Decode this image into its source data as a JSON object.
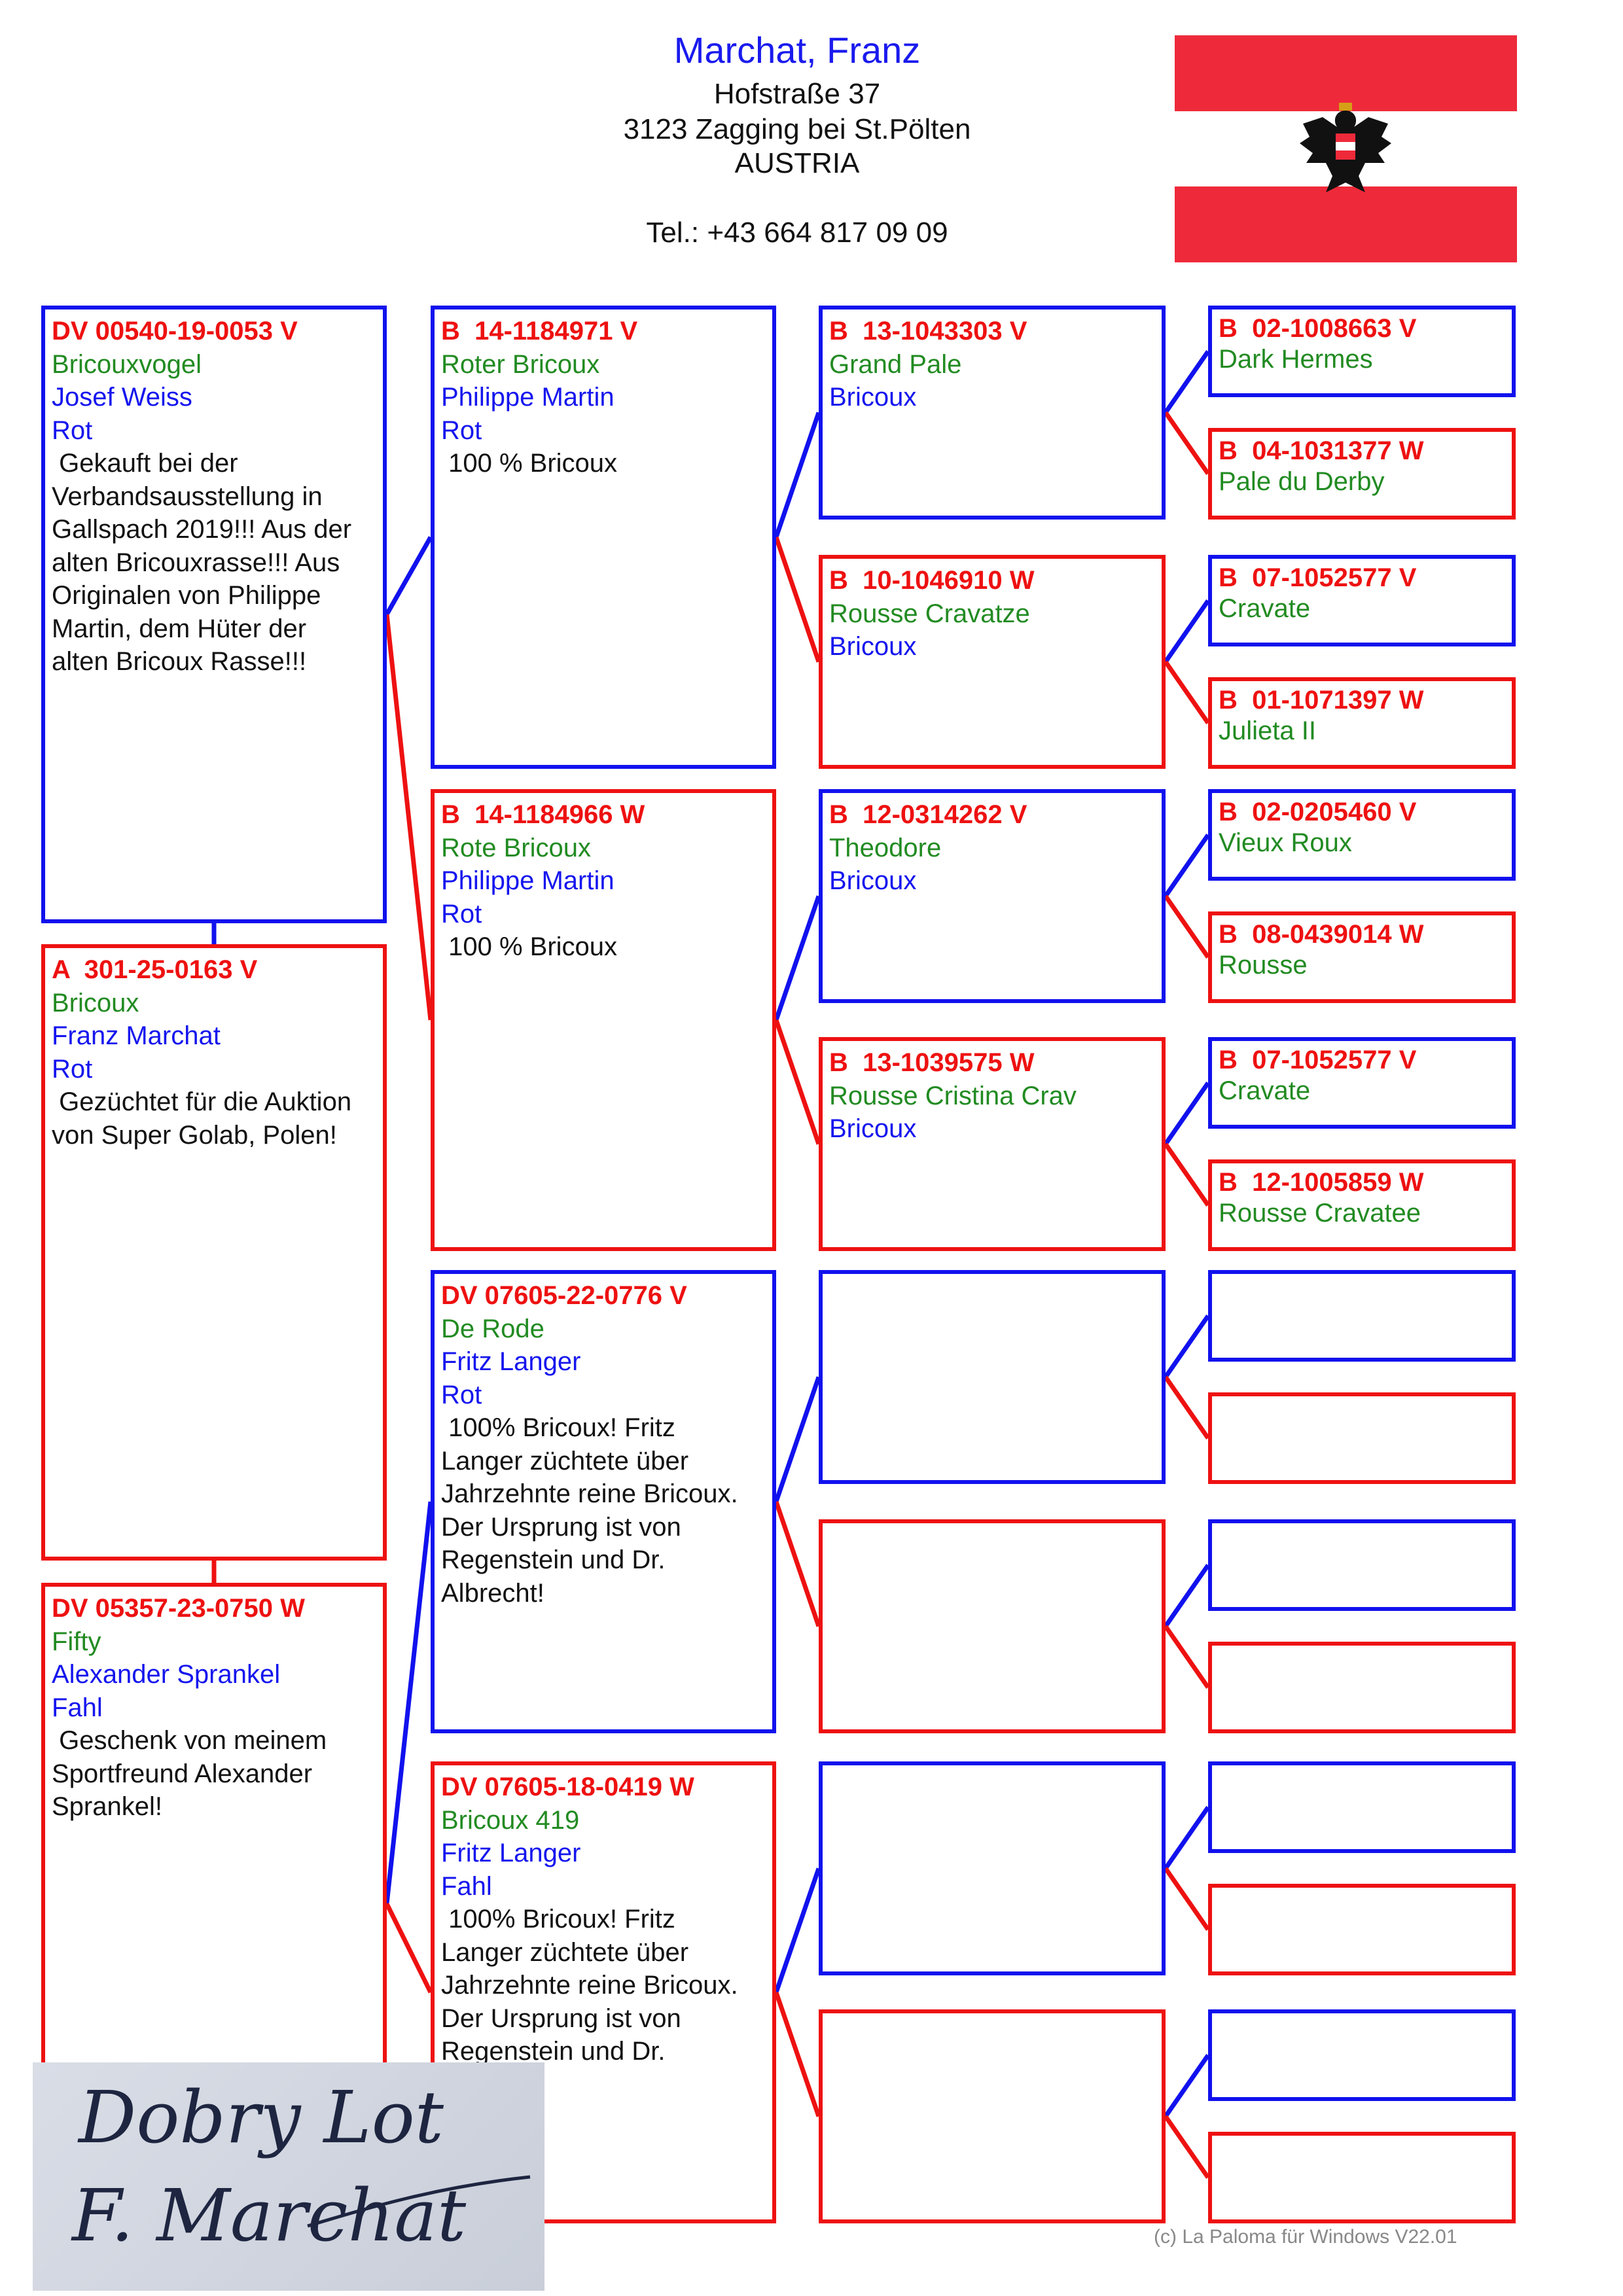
{
  "header": {
    "title": "Marchat, Franz",
    "street": "Hofstraße 37",
    "city": "3123 Zagging bei St.Pölten",
    "country": "AUSTRIA",
    "phone": "Tel.: +43 664 817 09 09"
  },
  "flag": {
    "icon": "austria-flag-eagle-icon",
    "colors": {
      "red": "#ee2a3a",
      "white": "#ffffff"
    }
  },
  "colors": {
    "male": "#1111ee",
    "female": "#ee1111",
    "ring": "#ee1111",
    "name": "#228b22",
    "breeder": "#1515ee"
  },
  "pedigree": {
    "gen1": [
      {
        "ring": "DV 00540-19-0053 V",
        "name": "Bricouxvogel",
        "breeder": "Josef Weiss",
        "color": "Rot",
        "note": " Gekauft bei der Verbandsausstellung in Gallspach 2019!!! Aus der alten Bricouxrasse!!! Aus Originalen von Philippe Martin, dem Hüter der alten Bricoux Rasse!!!"
      },
      {
        "ring": "A  301-25-0163 V",
        "name": "Bricoux",
        "breeder": "Franz Marchat",
        "color": "Rot",
        "note": " Gezüchtet für die Auktion von Super Golab, Polen!"
      },
      {
        "ring": "DV 05357-23-0750 W",
        "name": "Fifty",
        "breeder": "Alexander Sprankel",
        "color": "Fahl",
        "note": " Geschenk von meinem Sportfreund Alexander Sprankel!"
      }
    ],
    "gen2": [
      {
        "ring": "B  14-1184971 V",
        "name": "Roter Bricoux",
        "breeder": "Philippe Martin",
        "color": "Rot",
        "note": " 100 % Bricoux"
      },
      {
        "ring": "B  14-1184966 W",
        "name": "Rote Bricoux",
        "breeder": "Philippe Martin",
        "color": "Rot",
        "note": " 100 % Bricoux"
      },
      {
        "ring": "DV 07605-22-0776 V",
        "name": "De Rode",
        "breeder": "Fritz Langer",
        "color": "Rot",
        "note": " 100% Bricoux! Fritz Langer züchtete über Jahrzehnte reine Bricoux. Der Ursprung ist von Regenstein und Dr. Albrecht!"
      },
      {
        "ring": "DV 07605-18-0419 W",
        "name": "Bricoux 419",
        "breeder": "Fritz Langer",
        "color": "Fahl",
        "note": " 100% Bricoux! Fritz Langer züchtete über Jahrzehnte reine Bricoux. Der Ursprung ist von Regenstein und Dr. Albrecht!"
      }
    ],
    "gen3": [
      {
        "ring": "B  13-1043303 V",
        "name": "Grand Pale",
        "breeder": "Bricoux"
      },
      {
        "ring": "B  10-1046910 W",
        "name": "Rousse Cravatze",
        "breeder": "Bricoux"
      },
      {
        "ring": "B  12-0314262 V",
        "name": "Theodore",
        "breeder": "Bricoux"
      },
      {
        "ring": "B  13-1039575 W",
        "name": "Rousse Cristina Crav",
        "breeder": "Bricoux"
      },
      {},
      {},
      {},
      {}
    ],
    "gen4": [
      {
        "ring": "B  02-1008663 V",
        "name": "Dark Hermes"
      },
      {
        "ring": "B  04-1031377 W",
        "name": "Pale du Derby"
      },
      {
        "ring": "B  07-1052577 V",
        "name": "Cravate"
      },
      {
        "ring": "B  01-1071397 W",
        "name": "Julieta II"
      },
      {
        "ring": "B  02-0205460 V",
        "name": "Vieux Roux"
      },
      {
        "ring": "B  08-0439014 W",
        "name": "Rousse"
      },
      {
        "ring": "B  07-1052577 V",
        "name": "Cravate"
      },
      {
        "ring": "B  12-1005859 W",
        "name": "Rousse Cravatee"
      },
      {},
      {},
      {},
      {},
      {},
      {},
      {},
      {}
    ]
  },
  "signature": {
    "line1": "Dobry Lot",
    "line2": "F. Marchat"
  },
  "footer": "(c) La Paloma für Windows V22.01"
}
